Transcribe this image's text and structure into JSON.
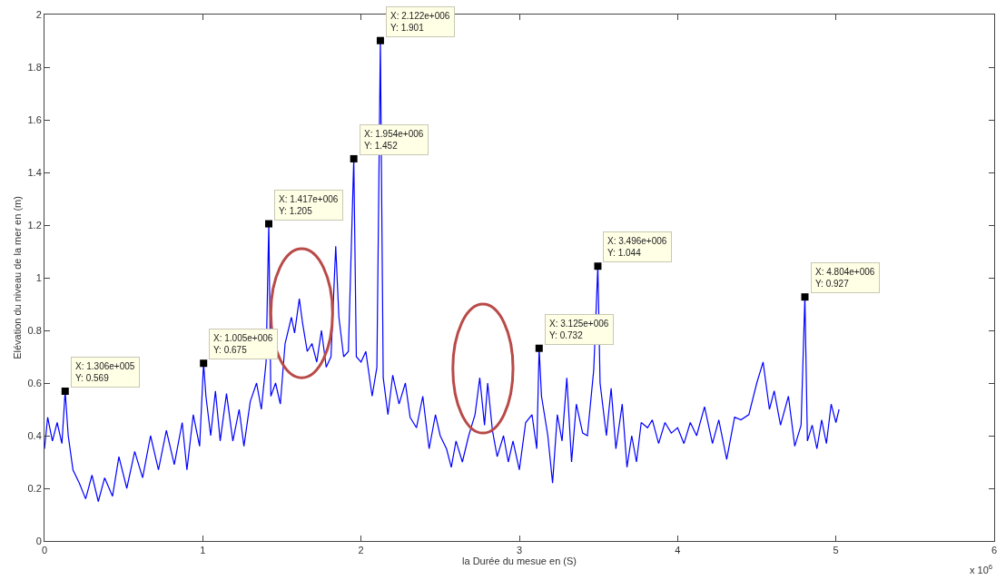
{
  "chart_data": {
    "type": "line",
    "xlabel": "la Durée du mesue en (S)",
    "ylabel": "Elévation du niveau de la mer en (m)",
    "x": [
      0,
      0.02,
      0.05,
      0.08,
      0.11,
      0.1306,
      0.15,
      0.18,
      0.22,
      0.26,
      0.3,
      0.34,
      0.38,
      0.43,
      0.47,
      0.52,
      0.57,
      0.62,
      0.67,
      0.72,
      0.77,
      0.82,
      0.87,
      0.9,
      0.94,
      0.98,
      1.005,
      1.02,
      1.05,
      1.08,
      1.11,
      1.15,
      1.19,
      1.23,
      1.26,
      1.3,
      1.34,
      1.37,
      1.4,
      1.417,
      1.43,
      1.46,
      1.49,
      1.52,
      1.56,
      1.58,
      1.61,
      1.63,
      1.66,
      1.69,
      1.72,
      1.75,
      1.78,
      1.81,
      1.84,
      1.86,
      1.89,
      1.92,
      1.954,
      1.97,
      2.0,
      2.03,
      2.07,
      2.1,
      2.122,
      2.14,
      2.17,
      2.2,
      2.24,
      2.28,
      2.31,
      2.35,
      2.39,
      2.43,
      2.47,
      2.5,
      2.54,
      2.57,
      2.6,
      2.64,
      2.68,
      2.72,
      2.75,
      2.78,
      2.8,
      2.83,
      2.86,
      2.9,
      2.93,
      2.96,
      3.0,
      3.04,
      3.08,
      3.11,
      3.125,
      3.14,
      3.18,
      3.21,
      3.24,
      3.27,
      3.3,
      3.33,
      3.36,
      3.4,
      3.43,
      3.47,
      3.496,
      3.51,
      3.55,
      3.58,
      3.61,
      3.65,
      3.68,
      3.71,
      3.74,
      3.77,
      3.81,
      3.84,
      3.88,
      3.92,
      3.96,
      4.0,
      4.04,
      4.08,
      4.12,
      4.17,
      4.22,
      4.26,
      4.31,
      4.36,
      4.4,
      4.45,
      4.5,
      4.54,
      4.58,
      4.61,
      4.65,
      4.7,
      4.74,
      4.78,
      4.804,
      4.82,
      4.85,
      4.88,
      4.91,
      4.94,
      4.97,
      5.0,
      5.02
    ],
    "series": [
      {
        "color": "#0000ff",
        "values": [
          0.35,
          0.47,
          0.38,
          0.45,
          0.37,
          0.569,
          0.4,
          0.27,
          0.22,
          0.16,
          0.25,
          0.15,
          0.24,
          0.17,
          0.32,
          0.2,
          0.34,
          0.24,
          0.4,
          0.27,
          0.42,
          0.29,
          0.45,
          0.27,
          0.48,
          0.36,
          0.675,
          0.55,
          0.4,
          0.57,
          0.38,
          0.56,
          0.38,
          0.5,
          0.36,
          0.53,
          0.6,
          0.5,
          0.68,
          1.205,
          0.55,
          0.6,
          0.52,
          0.75,
          0.85,
          0.79,
          0.92,
          0.83,
          0.72,
          0.75,
          0.68,
          0.8,
          0.66,
          0.7,
          1.12,
          0.85,
          0.7,
          0.72,
          1.452,
          0.7,
          0.68,
          0.72,
          0.55,
          0.66,
          1.901,
          0.62,
          0.48,
          0.63,
          0.52,
          0.6,
          0.47,
          0.43,
          0.55,
          0.35,
          0.48,
          0.4,
          0.35,
          0.28,
          0.38,
          0.3,
          0.4,
          0.48,
          0.62,
          0.44,
          0.6,
          0.42,
          0.32,
          0.4,
          0.3,
          0.38,
          0.27,
          0.45,
          0.48,
          0.35,
          0.732,
          0.55,
          0.4,
          0.22,
          0.48,
          0.38,
          0.62,
          0.3,
          0.52,
          0.41,
          0.4,
          0.65,
          1.044,
          0.6,
          0.4,
          0.58,
          0.35,
          0.52,
          0.28,
          0.4,
          0.3,
          0.45,
          0.43,
          0.46,
          0.37,
          0.45,
          0.41,
          0.43,
          0.37,
          0.45,
          0.4,
          0.51,
          0.37,
          0.46,
          0.31,
          0.47,
          0.46,
          0.48,
          0.6,
          0.68,
          0.5,
          0.57,
          0.44,
          0.55,
          0.36,
          0.44,
          0.927,
          0.38,
          0.44,
          0.35,
          0.46,
          0.37,
          0.52,
          0.45,
          0.5
        ]
      }
    ],
    "xlim": [
      0,
      6
    ],
    "xticks": [
      0,
      1,
      2,
      3,
      4,
      5,
      6
    ],
    "ylim": [
      0,
      2
    ],
    "yticks": [
      0,
      0.2,
      0.4,
      0.6,
      0.8,
      1,
      1.2,
      1.4,
      1.6,
      1.8,
      2
    ],
    "annotations": [
      "x 10$^{6}$",
      {
        "text": "X: 1.306e+005\nY: 0.569",
        "x": 0.1306,
        "y": 0.569
      },
      {
        "text": "X: 1.005e+006\nY: 0.675",
        "x": 1.005,
        "y": 0.675
      },
      {
        "text": "X: 1.417e+006\nY: 1.205",
        "x": 1.417,
        "y": 1.205
      },
      {
        "text": "X: 1.954e+006\nY: 1.452",
        "x": 1.954,
        "y": 1.452
      },
      {
        "text": "X: 2.122e+006\nY: 1.901",
        "x": 2.122,
        "y": 1.901
      },
      {
        "text": "X: 3.125e+006\nY: 0.732",
        "x": 3.125,
        "y": 0.732
      },
      {
        "text": "X: 3.496e+006\nY: 1.044",
        "x": 3.496,
        "y": 1.044
      },
      {
        "text": "X: 4.804e+006\nY: 0.927",
        "x": 4.804,
        "y": 0.927
      }
    ]
  }
}
